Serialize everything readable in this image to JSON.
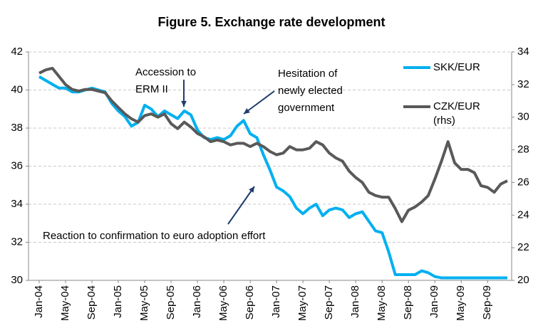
{
  "chart_data": {
    "type": "line",
    "title": "Figure 5. Exchange rate development",
    "categories": [
      "Jan-04",
      null,
      null,
      null,
      "May-04",
      null,
      null,
      null,
      "Sep-04",
      null,
      null,
      null,
      "Jan-05",
      null,
      null,
      null,
      "May-05",
      null,
      null,
      null,
      "Sep-05",
      null,
      null,
      null,
      "Jan-06",
      null,
      null,
      null,
      "May-06",
      null,
      null,
      null,
      "Sep-06",
      null,
      null,
      null,
      "Jan-07",
      null,
      null,
      null,
      "May-07",
      null,
      null,
      null,
      "Sep-07",
      null,
      null,
      null,
      "Jan-08",
      null,
      null,
      null,
      "May-08",
      null,
      null,
      null,
      "Sep-08",
      null,
      null,
      null,
      "Jan-09",
      null,
      null,
      null,
      "May-09",
      null,
      null,
      null,
      "Sep-09",
      null,
      null,
      null
    ],
    "series": [
      {
        "name": "SKK/EUR",
        "color": "#00b0f0",
        "values": [
          40.7,
          40.5,
          40.3,
          40.1,
          40.1,
          39.9,
          39.9,
          40.0,
          40.1,
          40.0,
          39.9,
          39.3,
          38.9,
          38.6,
          38.1,
          38.3,
          39.2,
          39.0,
          38.6,
          38.9,
          38.7,
          38.5,
          38.9,
          38.7,
          37.9,
          37.5,
          37.4,
          37.5,
          37.4,
          37.6,
          38.1,
          38.4,
          37.7,
          37.5,
          36.6,
          35.8,
          34.9,
          34.7,
          34.4,
          33.8,
          33.5,
          33.8,
          34.0,
          33.4,
          33.7,
          33.8,
          33.7,
          33.3,
          33.5,
          33.6,
          33.1,
          32.6,
          32.5,
          31.5,
          30.3,
          30.3,
          30.3,
          30.3,
          30.5,
          30.4,
          30.2,
          30.13,
          30.13,
          30.13,
          30.13,
          30.13,
          30.13,
          30.13,
          30.13,
          30.13,
          30.13,
          30.13
        ]
      },
      {
        "name": "CZK/EUR (rhs)",
        "color": "#595959",
        "axis": "y2",
        "values": [
          32.7,
          32.9,
          33.0,
          32.5,
          32.0,
          31.7,
          31.6,
          31.7,
          31.7,
          31.6,
          31.5,
          31.0,
          30.6,
          30.2,
          29.9,
          29.7,
          30.1,
          30.2,
          30.0,
          30.2,
          29.6,
          29.3,
          29.7,
          29.4,
          29.0,
          28.8,
          28.5,
          28.6,
          28.5,
          28.3,
          28.4,
          28.4,
          28.2,
          28.4,
          28.2,
          27.9,
          27.7,
          27.8,
          28.2,
          28.0,
          28.0,
          28.1,
          28.5,
          28.3,
          27.8,
          27.5,
          27.3,
          26.7,
          26.3,
          26.0,
          25.4,
          25.2,
          25.1,
          25.1,
          24.4,
          23.6,
          24.3,
          24.5,
          24.8,
          25.2,
          26.2,
          27.3,
          28.5,
          27.2,
          26.8,
          26.8,
          26.6,
          25.8,
          25.7,
          25.4,
          25.9,
          26.1
        ]
      }
    ],
    "ylim": [
      30,
      42
    ],
    "yticks": [
      30,
      32,
      34,
      36,
      38,
      40,
      42
    ],
    "y2lim": [
      20,
      34
    ],
    "y2ticks": [
      20,
      22,
      24,
      26,
      28,
      30,
      32,
      34
    ],
    "grid": true,
    "legend": "right",
    "annotations": [
      {
        "lines": [
          "Accession to",
          "ERM II"
        ]
      },
      {
        "lines": [
          "Hesitation of",
          "newly elected",
          "government"
        ]
      },
      {
        "lines": [
          "Reaction to confirmation to euro adoption effort"
        ]
      }
    ]
  }
}
